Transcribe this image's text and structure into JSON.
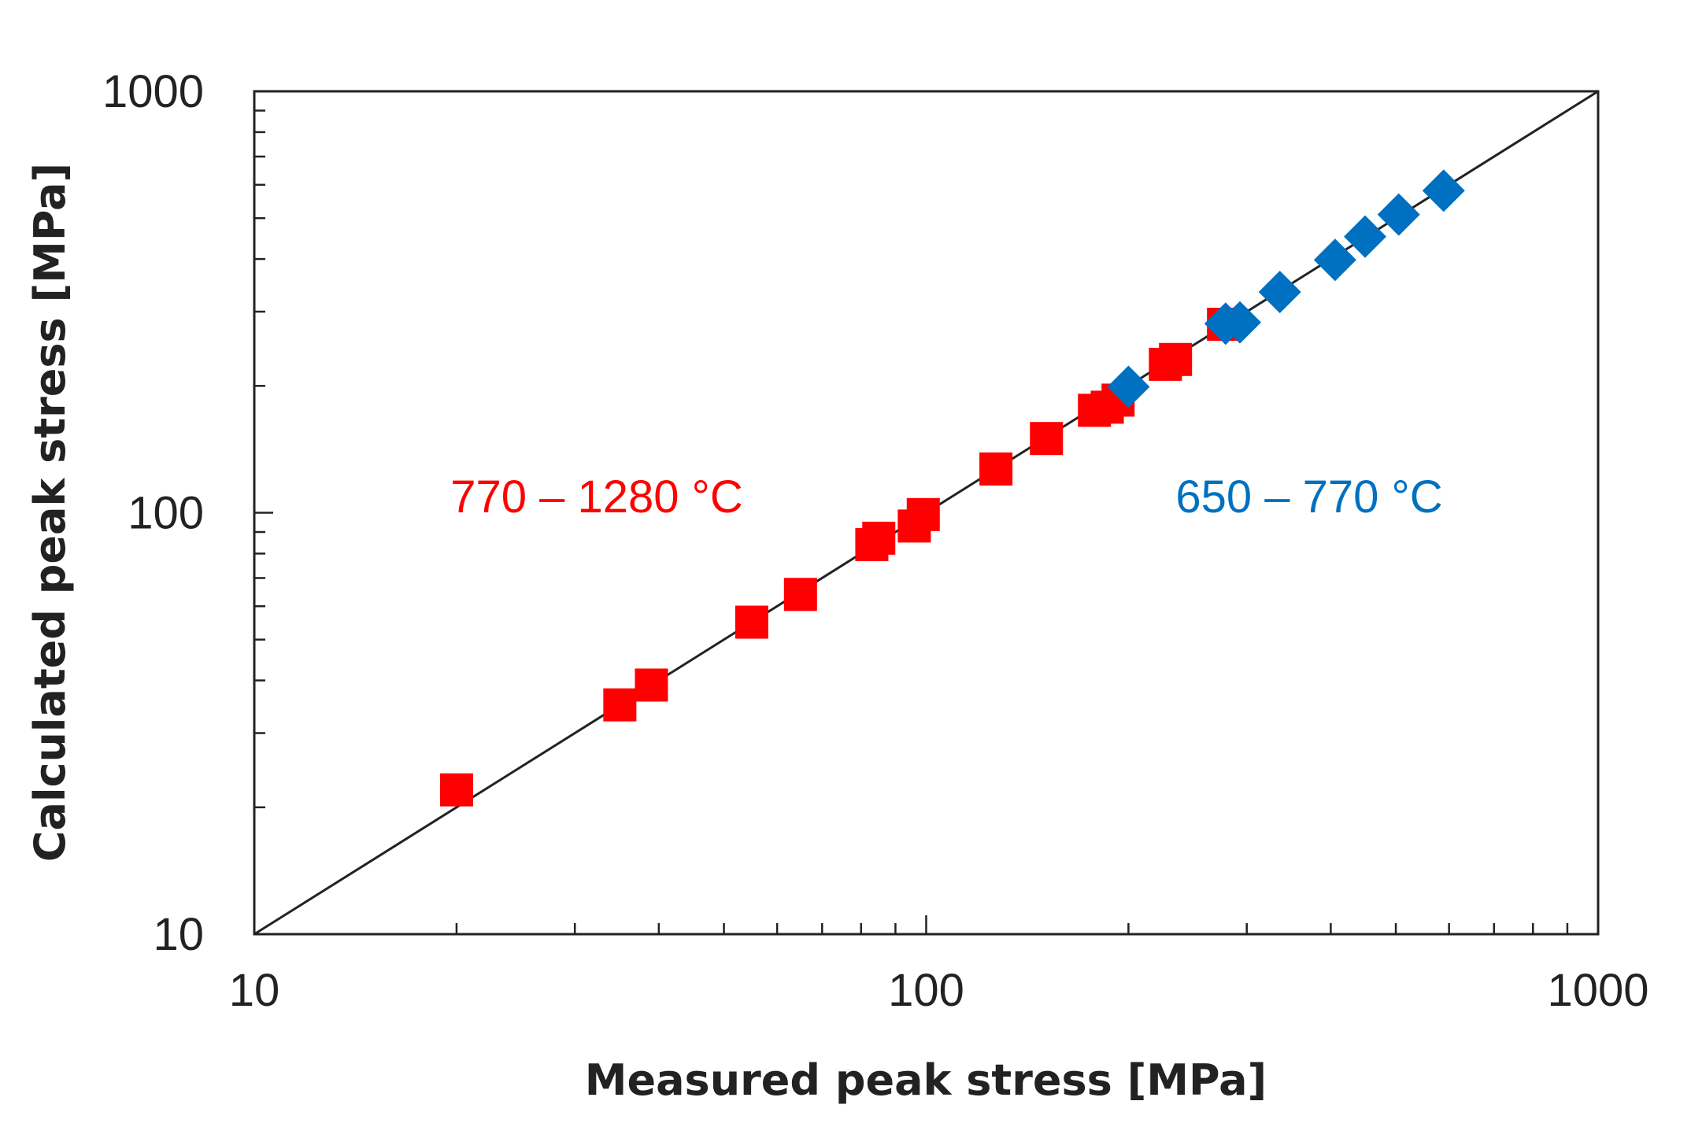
{
  "chart_data": {
    "type": "scatter",
    "title": "",
    "xlabel": "Measured peak stress [MPa]",
    "ylabel": "Calculated peak stress [MPa]",
    "xscale": "log",
    "yscale": "log",
    "xlim": [
      10,
      1000
    ],
    "ylim": [
      10,
      1000
    ],
    "xticks": [
      "10",
      "100",
      "1000"
    ],
    "yticks": [
      "10",
      "100",
      "1000"
    ],
    "grid": false,
    "reference_line": {
      "x": [
        10,
        1000
      ],
      "y": [
        10,
        1000
      ],
      "color": "#222222"
    },
    "series": [
      {
        "name": "770 – 1280 °C",
        "marker": "square",
        "color": "#ff0000",
        "x": [
          20,
          35,
          39,
          55,
          65,
          83,
          85,
          96,
          99,
          127,
          151,
          178,
          186,
          193,
          227,
          235,
          277
        ],
        "y": [
          22,
          35,
          39,
          55,
          64,
          84,
          87,
          93,
          99,
          127,
          150,
          175,
          178,
          185,
          225,
          231,
          280
        ]
      },
      {
        "name": "650 – 770 °C",
        "marker": "diamond",
        "color": "#0070c0",
        "x": [
          200,
          279,
          293,
          336,
          406,
          450,
          505,
          589
        ],
        "y": [
          199,
          281,
          283,
          334,
          398,
          452,
          510,
          581
        ]
      }
    ],
    "annotations": [
      {
        "text": "770 – 1280 °C",
        "color": "#ff0000",
        "series": 0
      },
      {
        "text": "650 – 770 °C",
        "color": "#0070c0",
        "series": 1
      }
    ]
  }
}
